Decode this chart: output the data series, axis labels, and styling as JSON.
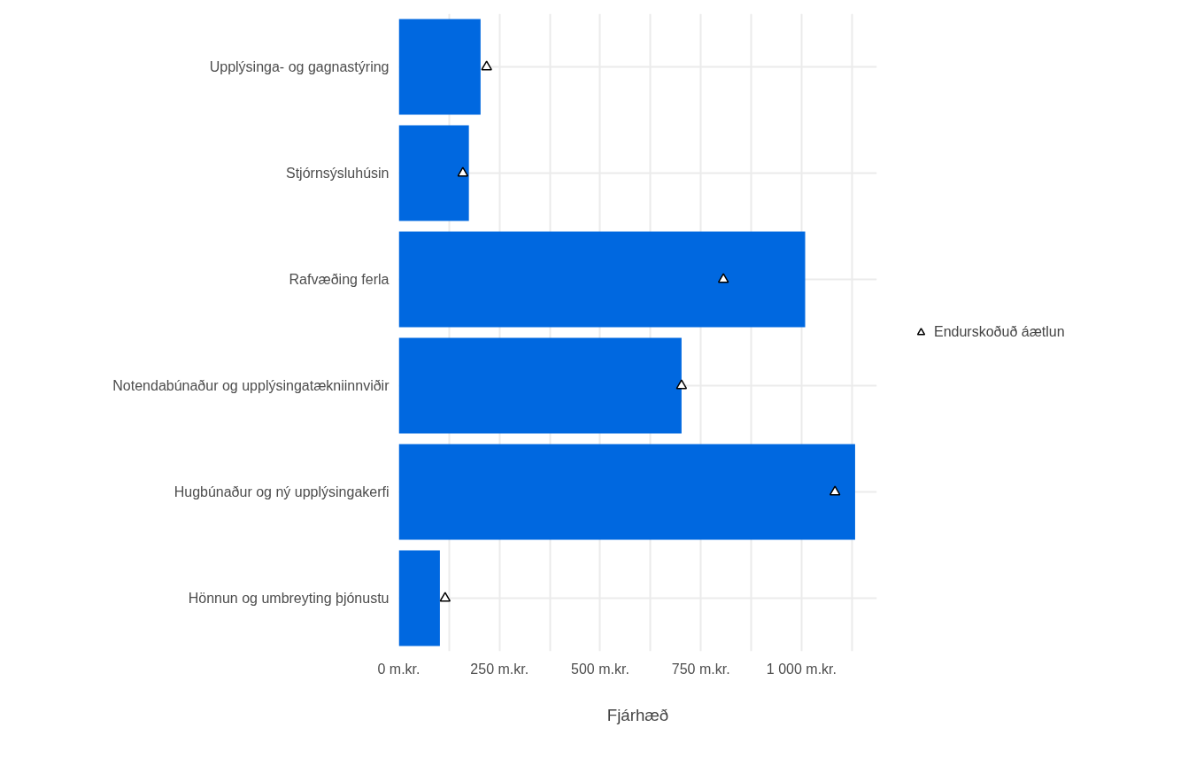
{
  "chart_data": {
    "type": "bar",
    "orientation": "horizontal",
    "xlabel": "Fjárhæð",
    "categories": [
      "Upplýsinga- og gagnastýring",
      "Stjórnsýsluhúsin",
      "Rafvæðing ferla",
      "Notendabúnaður og upplýsingatækniinnviðir",
      "Hugbúnaður og ný upplýsingakerfi",
      "Hönnun og umbreyting þjónustu"
    ],
    "series": [
      {
        "color": "#0068e0",
        "values": [
          203,
          174,
          1009,
          702,
          1133,
          102
        ]
      },
      {
        "type": "scatter",
        "name": "Endurskoðuð áætlun",
        "color": "#000000",
        "values": [
          218,
          159,
          806,
          702,
          1083,
          115
        ]
      }
    ],
    "xlim": [
      0,
      1187
    ],
    "xticks": [
      {
        "value": 0,
        "label": "0 m.kr."
      },
      {
        "value": 125,
        "label": null
      },
      {
        "value": 250,
        "label": "250 m.kr."
      },
      {
        "value": 375,
        "label": null
      },
      {
        "value": 500,
        "label": "500 m.kr."
      },
      {
        "value": 625,
        "label": null
      },
      {
        "value": 750,
        "label": "750 m.kr."
      },
      {
        "value": 875,
        "label": null
      },
      {
        "value": 1000,
        "label": "1 000 m.kr."
      },
      {
        "value": 1125,
        "label": null
      }
    ],
    "grid": true,
    "legend": "right",
    "marker": "triangle"
  }
}
